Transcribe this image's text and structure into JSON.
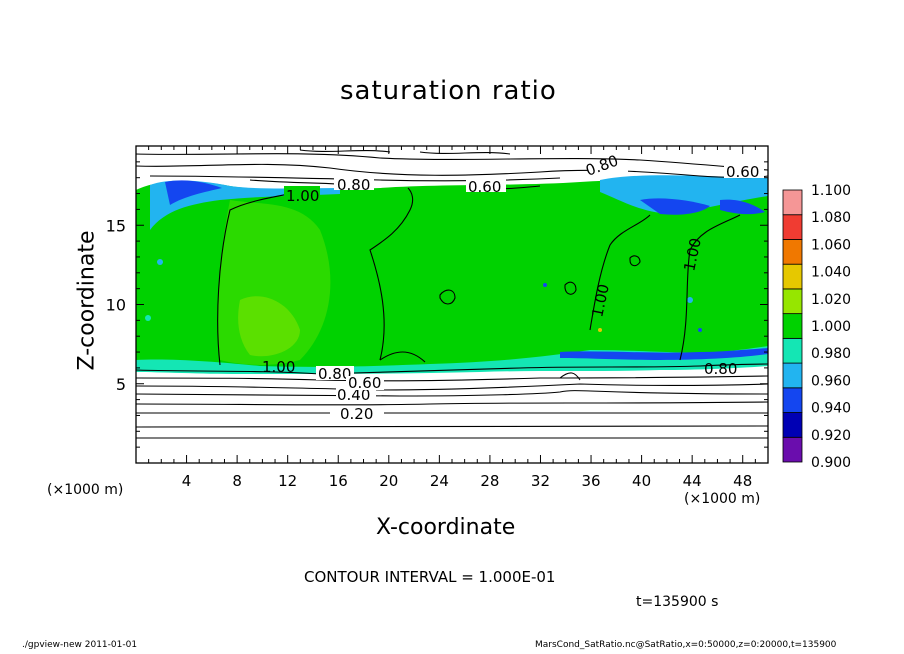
{
  "chart_data": {
    "type": "heatmap",
    "title": "saturation ratio",
    "xlabel": "X-coordinate",
    "ylabel": "Z-coordinate",
    "x_unit": "(×1000 m)",
    "y_unit": "(×1000 m)",
    "xlim": [
      0,
      50
    ],
    "ylim": [
      0,
      20
    ],
    "x_ticks": [
      "4",
      "8",
      "12",
      "16",
      "20",
      "24",
      "28",
      "32",
      "36",
      "40",
      "44",
      "48"
    ],
    "y_ticks": [
      "5",
      "10",
      "15"
    ],
    "colorbar": {
      "levels": [
        "0.900",
        "0.920",
        "0.940",
        "0.960",
        "0.980",
        "1.000",
        "1.020",
        "1.040",
        "1.060",
        "1.080",
        "1.100"
      ],
      "colors": [
        "#6a0dad",
        "#0000b4",
        "#1446f0",
        "#22b4f0",
        "#14e6b4",
        "#00d200",
        "#96e600",
        "#e6c800",
        "#f07800",
        "#f03c32",
        "#f59696"
      ]
    },
    "contour_labels": [
      "1.00",
      "0.80",
      "0.60",
      "0.40",
      "0.20",
      "0.80",
      "0.60",
      "1.00",
      "1.00",
      "1.00",
      "0.80",
      "0.80",
      "0.60"
    ],
    "contour_interval": "CONTOUR INTERVAL = 1.000E-01",
    "time": "t=135900 s"
  },
  "footer": {
    "left": "./gpview-new  2011-01-01",
    "right": "MarsCond_SatRatio.nc@SatRatio,x=0:50000,z=0:20000,t=135900"
  }
}
